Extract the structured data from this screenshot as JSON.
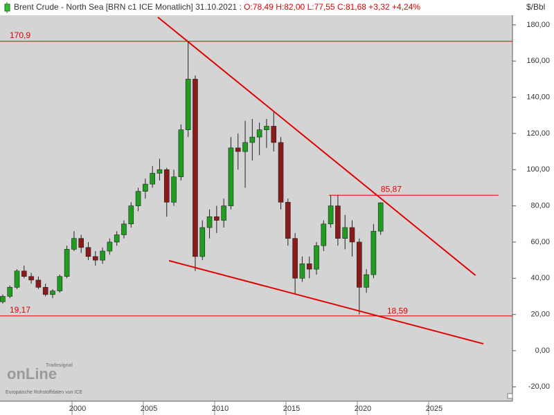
{
  "chart_data": {
    "type": "candlestick",
    "title": "Brent Crude - North Sea [BRN c1 ICE  Monatlich] 31.10.2021 :",
    "quote": "O:78,49 H:82,00 L:77,55 C:81,68 +3,32 +4,24%",
    "y_unit": "$/Bbl",
    "x": [
      1994.75,
      1995.25,
      1995.75,
      1996.25,
      1996.75,
      1997.25,
      1997.75,
      1998.25,
      1998.75,
      1999.25,
      1999.75,
      2000.25,
      2000.75,
      2001.25,
      2001.75,
      2002.25,
      2002.75,
      2003.25,
      2003.75,
      2004.25,
      2004.75,
      2005.25,
      2005.75,
      2006.25,
      2006.75,
      2007.25,
      2007.75,
      2008.25,
      2008.75,
      2009.25,
      2009.75,
      2010.25,
      2010.75,
      2011.25,
      2011.75,
      2012.25,
      2012.75,
      2013.25,
      2013.75,
      2014.25,
      2014.75,
      2015.25,
      2015.75,
      2016.25,
      2016.75,
      2017.25,
      2017.75,
      2018.25,
      2018.75,
      2019.25,
      2019.75,
      2020.25,
      2020.75,
      2021.25
    ],
    "open": [
      27,
      30,
      35,
      44,
      41,
      39,
      35,
      31,
      33,
      41,
      56,
      62,
      57,
      52,
      50,
      55,
      60,
      64,
      70,
      80,
      88,
      92,
      98,
      100,
      82,
      96,
      122,
      150,
      52,
      68,
      74,
      72,
      80,
      112,
      110,
      115,
      118,
      122,
      124,
      115,
      82,
      62,
      40,
      48,
      45,
      58,
      70,
      80,
      62,
      68,
      60,
      35,
      42,
      66
    ],
    "high": [
      31,
      36,
      45,
      47,
      43,
      41,
      37,
      34,
      42,
      58,
      66,
      64,
      60,
      55,
      57,
      62,
      66,
      72,
      82,
      90,
      95,
      102,
      106,
      101,
      100,
      125,
      171,
      152,
      72,
      78,
      80,
      84,
      118,
      120,
      127,
      128,
      126,
      128,
      132,
      118,
      84,
      65,
      52,
      52,
      60,
      72,
      86,
      86,
      75,
      72,
      62,
      45,
      70,
      82
    ],
    "low": [
      26,
      29,
      34,
      40,
      37,
      34,
      30,
      29,
      32,
      40,
      55,
      54,
      50,
      47,
      48,
      53,
      58,
      62,
      68,
      77,
      84,
      90,
      94,
      74,
      80,
      94,
      118,
      44,
      50,
      62,
      65,
      68,
      78,
      100,
      90,
      105,
      108,
      112,
      110,
      78,
      58,
      31,
      38,
      40,
      42,
      55,
      68,
      58,
      56,
      52,
      20,
      32,
      40,
      64
    ],
    "close": [
      30,
      35,
      44,
      41,
      39,
      35,
      31,
      33,
      41,
      56,
      62,
      57,
      52,
      50,
      55,
      60,
      64,
      70,
      80,
      88,
      92,
      98,
      100,
      82,
      96,
      122,
      150,
      52,
      68,
      74,
      72,
      80,
      112,
      110,
      115,
      118,
      122,
      124,
      115,
      82,
      62,
      40,
      48,
      45,
      58,
      70,
      80,
      62,
      68,
      60,
      35,
      42,
      66,
      81.68
    ],
    "up_color": "#1f9d1f",
    "down_color": "#8b1a1a",
    "xlim": [
      1994.56,
      2030.49
    ],
    "ylim": [
      -27.9,
      185.3
    ],
    "xticks": [
      2000,
      2005,
      2010,
      2015,
      2020,
      2025
    ],
    "yticks": [
      {
        "value": -20,
        "label": "-20,00"
      },
      {
        "value": 0,
        "label": "0,00"
      },
      {
        "value": 20,
        "label": "20,00"
      },
      {
        "value": 40,
        "label": "40,00"
      },
      {
        "value": 60,
        "label": "60,00"
      },
      {
        "value": 80,
        "label": "80,00"
      },
      {
        "value": 100,
        "label": "100,00"
      },
      {
        "value": 120,
        "label": "120,00"
      },
      {
        "value": 140,
        "label": "140,00"
      },
      {
        "value": 160,
        "label": "160,00"
      },
      {
        "value": 180,
        "label": "180,00"
      }
    ],
    "line_color": "#e00000",
    "hlines": [
      {
        "value": 170.9,
        "label": "170,9"
      },
      {
        "value": 19.17,
        "label": "19,17"
      },
      {
        "value": 85.87,
        "label": "85,87",
        "from": 2017.62,
        "to": 2029.51
      }
    ],
    "level_labels": [
      {
        "value": 18.59,
        "label": "18,59",
        "x": 2021.7
      }
    ],
    "trendlines": [
      {
        "x": [
          2005.63,
          2027.9
        ],
        "y": [
          184.2,
          41.6
        ]
      },
      {
        "x": [
          2006.41,
          2028.45
        ],
        "y": [
          49.7,
          3.8
        ]
      }
    ],
    "watermark": {
      "brand": "Tradesignal",
      "logo": "onLine",
      "source": "Europäische Rohstoffdaten von ICE"
    }
  }
}
